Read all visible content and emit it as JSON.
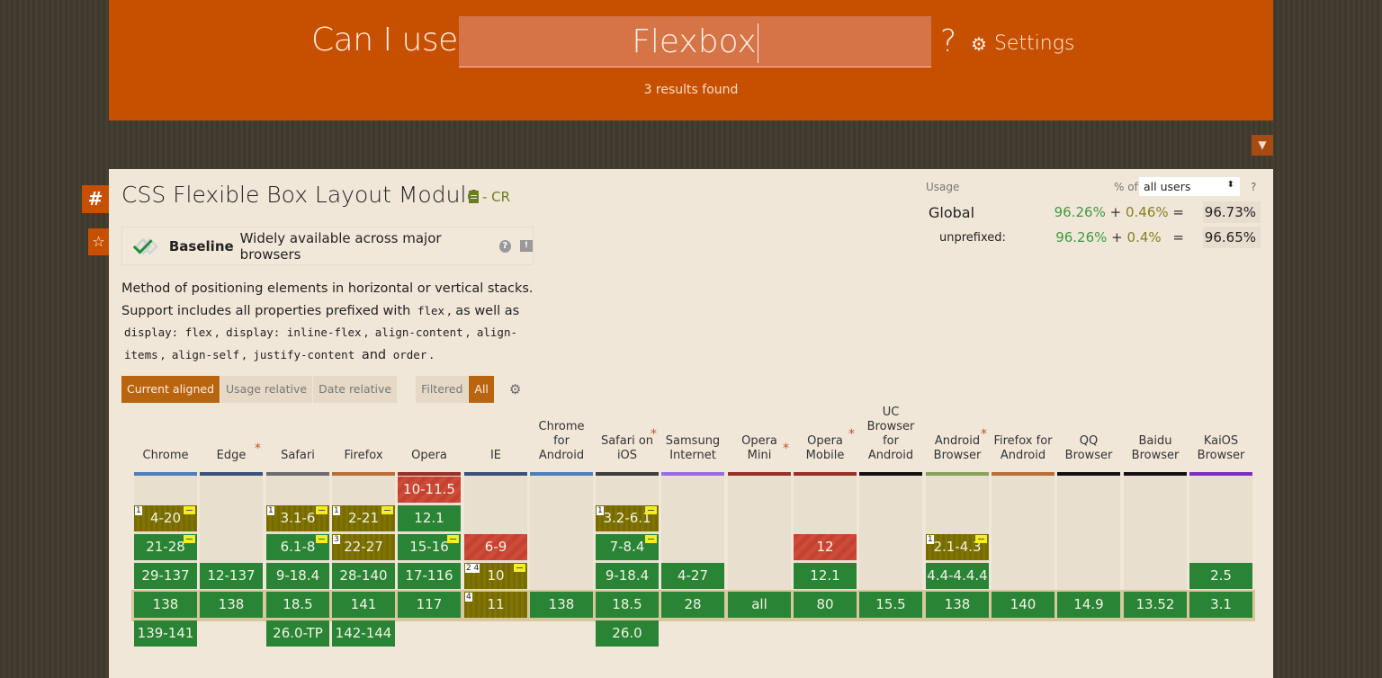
{
  "header": {
    "prefix": "Can I use",
    "search_value": "Flexbox",
    "suffix": "?",
    "settings_label": "Settings",
    "results": "3 results found"
  },
  "feature": {
    "title": "CSS Flexible Box Layout Module",
    "spec_status": "- CR",
    "baseline_label": "Baseline",
    "baseline_desc": "Widely available across major browsers",
    "description": {
      "line1": "Method of positioning elements in horizontal or vertical stacks.",
      "line2_a": "Support includes all properties prefixed with",
      "code_flex": "flex",
      "line2_b": ", as well as",
      "code_display_flex": "display: flex",
      "code_display_inline": "display: inline-flex",
      "code_align_content": "align-content",
      "code_align_items_a": "align-",
      "code_align_items_b": "items",
      "code_align_self": "align-self",
      "code_justify": "justify-content",
      "and": "and",
      "code_order": "order",
      "comma": ",",
      "period": "."
    }
  },
  "usage": {
    "label": "Usage",
    "pct_of": "% of",
    "selector_value": "all users",
    "help": "?",
    "global": {
      "name": "Global",
      "full": "96.26%",
      "plus": "+",
      "partial": "0.46%",
      "eq": "=",
      "total": "96.73%"
    },
    "unprefixed": {
      "name": "unprefixed:",
      "full": "96.26%",
      "plus": "+",
      "partial": "0.4%",
      "eq": "=",
      "total": "96.65%"
    }
  },
  "tabs": [
    {
      "label": "Current aligned",
      "active": true
    },
    {
      "label": "Usage relative",
      "active": false
    },
    {
      "label": "Date relative",
      "active": false
    }
  ],
  "filter_tabs": [
    {
      "label": "Filtered",
      "active": false
    },
    {
      "label": "All",
      "active": true
    }
  ],
  "browsers": [
    {
      "name": "Chrome",
      "color": "#4f7ebd",
      "star": false,
      "cells": [
        null,
        {
          "v": "4-20",
          "s": "a",
          "note": "1",
          "pre": true
        },
        {
          "v": "21-28",
          "s": "y",
          "pre": true
        },
        {
          "v": "29-137",
          "s": "y"
        },
        {
          "v": "138",
          "s": "y"
        },
        {
          "v": "139-141",
          "s": "y"
        }
      ]
    },
    {
      "name": "Edge",
      "color": "#3b5278",
      "star": true,
      "cells": [
        null,
        null,
        null,
        {
          "v": "12-137",
          "s": "y"
        },
        {
          "v": "138",
          "s": "y"
        },
        null
      ]
    },
    {
      "name": "Safari",
      "color": "#6c6c6c",
      "star": false,
      "cells": [
        null,
        {
          "v": "3.1-6",
          "s": "a",
          "note": "1",
          "pre": true
        },
        {
          "v": "6.1-8",
          "s": "y",
          "pre": true
        },
        {
          "v": "9-18.4",
          "s": "y"
        },
        {
          "v": "18.5",
          "s": "y"
        },
        {
          "v": "26.0-TP",
          "s": "y"
        }
      ]
    },
    {
      "name": "Firefox",
      "color": "#b96e37",
      "star": false,
      "cells": [
        null,
        {
          "v": "2-21",
          "s": "a",
          "note": "1",
          "pre": true
        },
        {
          "v": "22-27",
          "s": "a",
          "note": "3"
        },
        {
          "v": "28-140",
          "s": "y"
        },
        {
          "v": "141",
          "s": "y"
        },
        {
          "v": "142-144",
          "s": "y"
        }
      ]
    },
    {
      "name": "Opera",
      "color": "#9a2f2a",
      "star": false,
      "cells": [
        {
          "v": "10-11.5",
          "s": "n"
        },
        {
          "v": "12.1",
          "s": "y"
        },
        {
          "v": "15-16",
          "s": "y",
          "pre": true
        },
        {
          "v": "17-116",
          "s": "y"
        },
        {
          "v": "117",
          "s": "y"
        },
        null
      ]
    },
    {
      "name": "IE",
      "color": "#3b5278",
      "star": false,
      "cells": [
        null,
        null,
        {
          "v": "6-9",
          "s": "n"
        },
        {
          "v": "10",
          "s": "a",
          "note": "2 4",
          "pre": true
        },
        {
          "v": "11",
          "s": "a",
          "note": "4"
        },
        null
      ]
    },
    {
      "name": "Chrome for Android",
      "color": "#4f7ebd",
      "star": false,
      "cells": [
        null,
        null,
        null,
        null,
        {
          "v": "138",
          "s": "y"
        },
        null
      ]
    },
    {
      "name": "Safari on iOS",
      "color": "#3e3e3e",
      "star": true,
      "cells": [
        null,
        {
          "v": "3.2-6.1",
          "s": "a",
          "note": "1",
          "pre": true
        },
        {
          "v": "7-8.4",
          "s": "y",
          "pre": true
        },
        {
          "v": "9-18.4",
          "s": "y"
        },
        {
          "v": "18.5",
          "s": "y"
        },
        {
          "v": "26.0",
          "s": "y"
        }
      ]
    },
    {
      "name": "Samsung Internet",
      "color": "#9a6de0",
      "star": false,
      "cells": [
        null,
        null,
        null,
        {
          "v": "4-27",
          "s": "y"
        },
        {
          "v": "28",
          "s": "y"
        },
        null
      ]
    },
    {
      "name": "Opera Mini",
      "color": "#9a2f2a",
      "star": true,
      "cells": [
        null,
        null,
        null,
        null,
        {
          "v": "all",
          "s": "y"
        },
        null
      ]
    },
    {
      "name": "Opera Mobile",
      "color": "#9a2f2a",
      "star": true,
      "cells": [
        null,
        null,
        {
          "v": "12",
          "s": "n"
        },
        {
          "v": "12.1",
          "s": "y"
        },
        {
          "v": "80",
          "s": "y"
        },
        null
      ]
    },
    {
      "name": "UC Browser for Android",
      "color": "#111111",
      "star": false,
      "cells": [
        null,
        null,
        null,
        null,
        {
          "v": "15.5",
          "s": "y"
        },
        null
      ]
    },
    {
      "name": "Android Browser",
      "color": "#86a35a",
      "star": true,
      "cells": [
        null,
        null,
        {
          "v": "2.1-4.3",
          "s": "a",
          "note": "1",
          "pre": true
        },
        {
          "v": "4.4-4.4.4",
          "s": "y"
        },
        {
          "v": "138",
          "s": "y"
        },
        null
      ]
    },
    {
      "name": "Firefox for Android",
      "color": "#b96e37",
      "star": false,
      "cells": [
        null,
        null,
        null,
        null,
        {
          "v": "140",
          "s": "y"
        },
        null
      ]
    },
    {
      "name": "QQ Browser",
      "color": "#111111",
      "star": false,
      "cells": [
        null,
        null,
        null,
        null,
        {
          "v": "14.9",
          "s": "y"
        },
        null
      ]
    },
    {
      "name": "Baidu Browser",
      "color": "#111111",
      "star": false,
      "cells": [
        null,
        null,
        null,
        null,
        {
          "v": "13.52",
          "s": "y"
        },
        null
      ]
    },
    {
      "name": "KaiOS Browser",
      "color": "#7a2fbf",
      "star": false,
      "cells": [
        null,
        null,
        null,
        {
          "v": "2.5",
          "s": "y"
        },
        {
          "v": "3.1",
          "s": "y"
        },
        null
      ]
    }
  ],
  "header_lines": [
    [
      "Chrome"
    ],
    [
      "Edge"
    ],
    [
      "Safari"
    ],
    [
      "Firefox"
    ],
    [
      "Opera"
    ],
    [
      "IE"
    ],
    [
      "Chrome",
      "for",
      "Android"
    ],
    [
      "Safari on",
      "iOS"
    ],
    [
      "Samsung",
      "Internet"
    ],
    [
      "Opera Mini"
    ],
    [
      "Opera",
      "Mobile"
    ],
    [
      "UC",
      "Browser",
      "for",
      "Android"
    ],
    [
      "Android",
      "Browser"
    ],
    [
      "Firefox for",
      "Android"
    ],
    [
      "QQ",
      "Browser"
    ],
    [
      "Baidu",
      "Browser"
    ],
    [
      "KaiOS",
      "Browser"
    ]
  ]
}
